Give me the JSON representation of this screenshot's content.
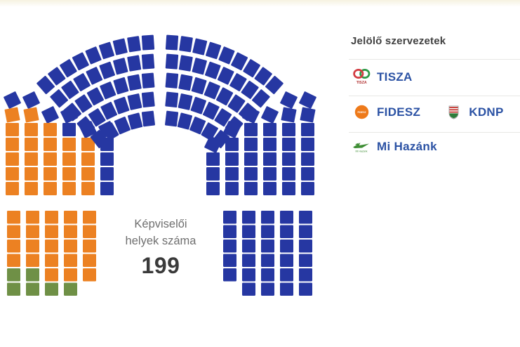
{
  "chart": {
    "center_label_line1": "Képviselői",
    "center_label_line2": "helyek száma",
    "total_label": "199"
  },
  "legend": {
    "title": "Jelölő szervezetek",
    "rows": [
      {
        "parties": [
          {
            "icon": "tisza-logo-icon",
            "logo_text": "TISZA",
            "label": "TISZA"
          }
        ]
      },
      {
        "parties": [
          {
            "icon": "fidesz-logo-icon",
            "logo_text": "FIDESZ",
            "label": "FIDESZ"
          },
          {
            "icon": "kdnp-logo-icon",
            "logo_text": "",
            "label": "KDNP"
          }
        ]
      },
      {
        "parties": [
          {
            "icon": "mi-hazank-logo-icon",
            "logo_text": "Mi Hazánk",
            "label": "Mi Hazánk"
          }
        ]
      }
    ]
  },
  "chart_data": {
    "type": "parliament-hemicycle",
    "title": "Képviselői helyek száma",
    "total_seats": 199,
    "legend_position": "right",
    "parties": [
      {
        "code": "T",
        "name": "TISZA",
        "color": "#2637a2",
        "seats": 145
      },
      {
        "code": "F",
        "name": "FIDESZ – KDNP",
        "color": "#ec8122",
        "seats": 48
      },
      {
        "code": "M",
        "name": "Mi Hazánk",
        "color": "#6f9046",
        "seats": 6
      }
    ],
    "sections": [
      {
        "name": "left-wedge",
        "columns": [
          [
            "T",
            "F",
            "F",
            "F",
            "F",
            "F",
            "F"
          ],
          [
            "T",
            "F",
            "F",
            "F",
            "F",
            "F",
            "F"
          ],
          [
            "T",
            "F",
            "F",
            "F",
            "F",
            "F"
          ],
          [
            "T",
            "T",
            "F",
            "F",
            "F",
            "F"
          ],
          [
            "T",
            "F",
            "F",
            "F",
            "F"
          ],
          [
            "T",
            "T",
            "T",
            "T",
            "T"
          ]
        ]
      },
      {
        "name": "top-left-wedge",
        "rows": [
          [
            "T",
            "T",
            "T",
            "T",
            "T"
          ],
          [
            "T",
            "T",
            "T",
            "T",
            "T",
            "T"
          ],
          [
            "T",
            "T",
            "T",
            "T",
            "T",
            "T",
            "T"
          ],
          [
            "T",
            "T",
            "T",
            "T",
            "T",
            "T",
            "T",
            "T"
          ],
          [
            "T",
            "T",
            "T",
            "T",
            "T",
            "T",
            "T",
            "T",
            "T"
          ]
        ]
      },
      {
        "name": "top-right-wedge",
        "rows": [
          [
            "T",
            "T",
            "T",
            "T",
            "T"
          ],
          [
            "T",
            "T",
            "T",
            "T",
            "T",
            "T"
          ],
          [
            "T",
            "T",
            "T",
            "T",
            "T",
            "T",
            "T"
          ],
          [
            "T",
            "T",
            "T",
            "T",
            "T",
            "T",
            "T",
            "T"
          ],
          [
            "T",
            "T",
            "T",
            "T",
            "T",
            "T",
            "T",
            "T",
            "T"
          ]
        ]
      },
      {
        "name": "right-wedge",
        "columns": [
          [
            "T",
            "T",
            "T",
            "T",
            "T",
            "T",
            "T"
          ],
          [
            "T",
            "T",
            "T",
            "T",
            "T",
            "T",
            "T"
          ],
          [
            "T",
            "T",
            "T",
            "T",
            "T",
            "T"
          ],
          [
            "T",
            "T",
            "T",
            "T",
            "T",
            "T"
          ],
          [
            "T",
            "T",
            "T",
            "T",
            "T"
          ],
          [
            "T",
            "T",
            "T",
            "T"
          ]
        ]
      },
      {
        "name": "bottom-left-block",
        "columns": [
          [
            "F",
            "F",
            "F",
            "F",
            "M",
            "M"
          ],
          [
            "F",
            "F",
            "F",
            "F",
            "M",
            "M"
          ],
          [
            "F",
            "F",
            "F",
            "F",
            "F",
            "M"
          ],
          [
            "F",
            "F",
            "F",
            "F",
            "F",
            "M"
          ],
          [
            "F",
            "F",
            "F",
            "F",
            "F"
          ]
        ]
      },
      {
        "name": "bottom-right-block",
        "columns": [
          [
            "T",
            "T",
            "T",
            "T",
            "T"
          ],
          [
            "T",
            "T",
            "T",
            "T",
            "T",
            "T"
          ],
          [
            "T",
            "T",
            "T",
            "T",
            "T",
            "T"
          ],
          [
            "T",
            "T",
            "T",
            "T",
            "T",
            "T"
          ],
          [
            "T",
            "T",
            "T",
            "T",
            "T",
            "T"
          ]
        ]
      }
    ]
  }
}
